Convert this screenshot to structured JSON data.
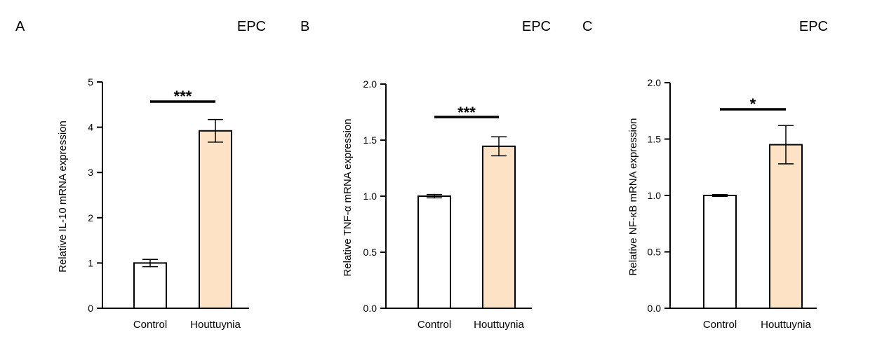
{
  "chart_data": [
    {
      "type": "bar",
      "panel_label": "A",
      "title": "EPC",
      "categories": [
        "Control",
        "Houttuynia"
      ],
      "values": [
        1.0,
        3.92
      ],
      "errors": [
        0.08,
        0.25
      ],
      "ylabel": "Relative IL-10 mRNA expression",
      "ylim": [
        0,
        5
      ],
      "yticks": [
        0,
        1,
        2,
        3,
        4,
        5
      ],
      "ytick_labels": [
        "0",
        "1",
        "2",
        "3",
        "4",
        "5"
      ],
      "significance": "***",
      "colors": [
        "#ffffff",
        "#fde2c6"
      ],
      "grid": false
    },
    {
      "type": "bar",
      "panel_label": "B",
      "title": "EPC",
      "categories": [
        "Control",
        "Houttuynia"
      ],
      "values": [
        1.0,
        1.445
      ],
      "errors": [
        0.015,
        0.085
      ],
      "ylabel": "Relative TNF-α mRNA expression",
      "ylim": [
        0,
        2.0
      ],
      "yticks": [
        0,
        0.5,
        1.0,
        1.5,
        2.0
      ],
      "ytick_labels": [
        "0.0",
        "0.5",
        "1.0",
        "1.5",
        "2.0"
      ],
      "significance": "***",
      "colors": [
        "#ffffff",
        "#fde2c6"
      ],
      "grid": false
    },
    {
      "type": "bar",
      "panel_label": "C",
      "title": "EPC",
      "categories": [
        "Control",
        "Houttuynia"
      ],
      "values": [
        1.0,
        1.45
      ],
      "errors": [
        0.008,
        0.17
      ],
      "ylabel": "Relative NF-κB mRNA expression",
      "ylim": [
        0,
        2.0
      ],
      "yticks": [
        0,
        0.5,
        1.0,
        1.5,
        2.0
      ],
      "ytick_labels": [
        "0.0",
        "0.5",
        "1.0",
        "1.5",
        "2.0"
      ],
      "significance": "*",
      "colors": [
        "#ffffff",
        "#fde2c6"
      ],
      "grid": false
    }
  ]
}
